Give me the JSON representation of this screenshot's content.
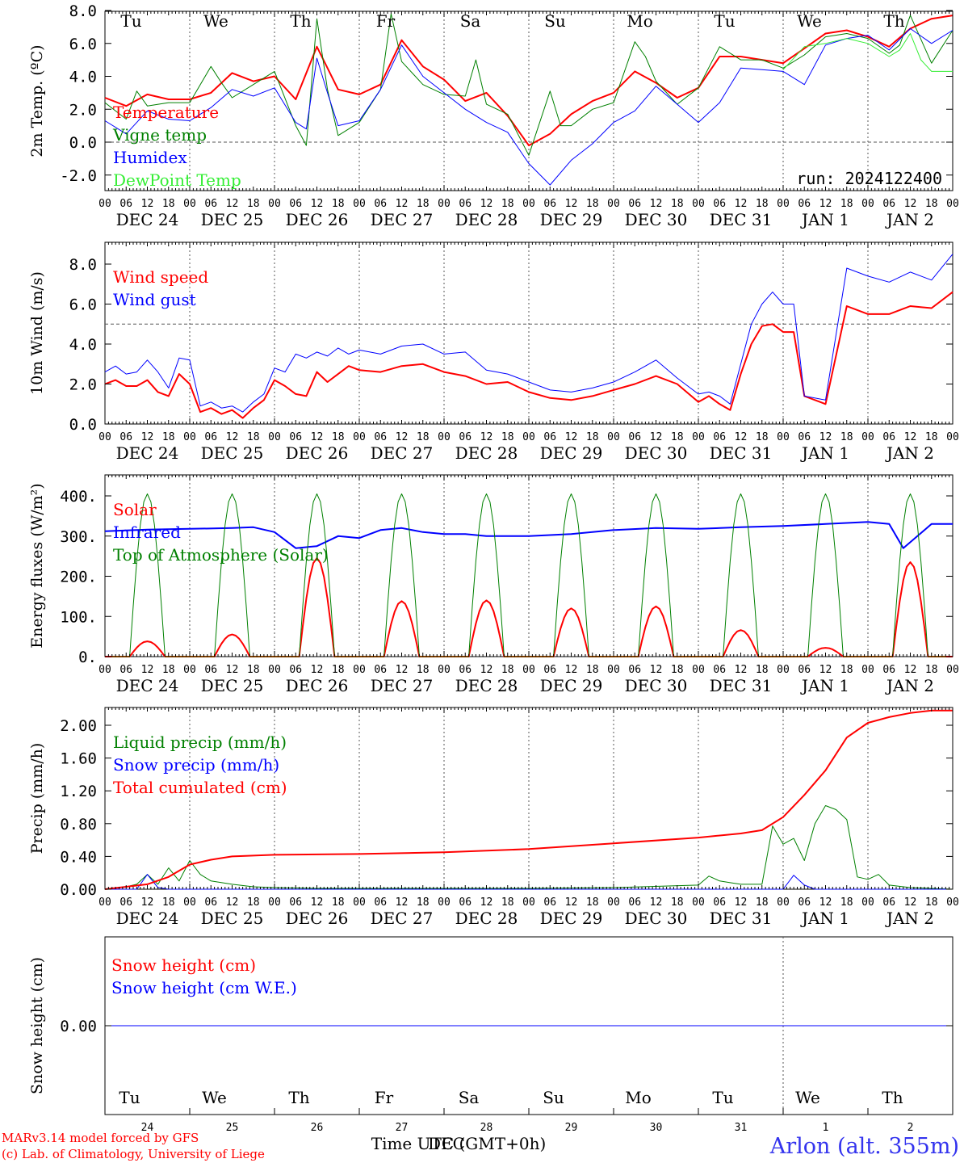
{
  "page": {
    "station": "Arlon (alt. 355m)",
    "credit_line1": "MARv3.14 model forced by GFS",
    "credit_line2": "(c) Lab. of Climatology, University of Liege",
    "time_axis_label": "Time UTC (GMT+0h)",
    "time_axis_overlay": "DEC",
    "run_label": "run: 2024122400",
    "colors": {
      "red": "#ff0000",
      "green": "#008000",
      "blue": "#0000ff",
      "lightgreen": "#33ee33",
      "weekend": "#ff0000"
    }
  },
  "days": [
    "Tu",
    "We",
    "Th",
    "Fr",
    "Sa",
    "Su",
    "Mo",
    "Tu",
    "We",
    "Th"
  ],
  "weekend_days": [
    "Sa",
    "Su"
  ],
  "dates": [
    "DEC 24",
    "DEC 25",
    "DEC 26",
    "DEC 27",
    "DEC 28",
    "DEC 29",
    "DEC 30",
    "DEC 31",
    "JAN  1",
    "JAN  2"
  ],
  "day_numbers": [
    "24",
    "25",
    "26",
    "27",
    "28",
    "29",
    "30",
    "31",
    "1",
    "2"
  ],
  "hour_ticks": [
    "00",
    "06",
    "12",
    "18"
  ],
  "chart_data": [
    {
      "type": "line",
      "ylabel": "2m Temp. (ºC)",
      "ylim": [
        -3,
        8
      ],
      "yticks": [
        8.0,
        6.0,
        4.0,
        2.0,
        0.0,
        -2.0
      ],
      "ytick_labels": [
        "8.0",
        "6.0",
        "4.0",
        "2.0",
        "0.0",
        "-2.0"
      ],
      "reference_line": 0.0,
      "x_unit": "hours since DEC 24 00 UTC",
      "series": [
        {
          "name": "Temperature",
          "color": "#ff0000",
          "width": 2,
          "x": [
            0,
            6,
            12,
            18,
            24,
            30,
            36,
            42,
            48,
            54,
            60,
            66,
            72,
            78,
            84,
            90,
            96,
            102,
            108,
            114,
            120,
            126,
            132,
            138,
            144,
            150,
            156,
            162,
            168,
            174,
            180,
            186,
            192,
            198,
            204,
            210,
            216,
            222,
            228,
            234,
            240
          ],
          "y": [
            2.7,
            2.2,
            2.9,
            2.6,
            2.6,
            3.0,
            4.2,
            3.7,
            4.0,
            2.6,
            5.8,
            3.2,
            2.9,
            3.5,
            6.2,
            4.6,
            3.8,
            2.5,
            3.0,
            1.6,
            -0.2,
            0.5,
            1.7,
            2.5,
            3.0,
            4.3,
            3.6,
            2.7,
            3.3,
            5.2,
            5.2,
            5.0,
            4.8,
            5.7,
            6.6,
            6.8,
            6.4,
            5.8,
            6.9,
            7.5,
            7.7
          ]
        },
        {
          "name": "Vigne temp",
          "color": "#008000",
          "width": 1,
          "x": [
            0,
            6,
            9,
            12,
            18,
            24,
            30,
            33,
            36,
            42,
            48,
            54,
            57,
            60,
            63,
            66,
            72,
            78,
            81,
            84,
            87,
            90,
            96,
            102,
            105,
            108,
            114,
            120,
            126,
            129,
            132,
            138,
            144,
            150,
            153,
            156,
            162,
            168,
            174,
            180,
            186,
            192,
            198,
            204,
            210,
            216,
            222,
            225,
            228,
            234,
            240
          ],
          "y": [
            2.4,
            1.4,
            3.1,
            2.2,
            2.4,
            2.4,
            4.6,
            3.6,
            2.7,
            3.5,
            4.3,
            1.0,
            -0.2,
            7.5,
            3.2,
            0.4,
            1.2,
            3.2,
            7.8,
            4.9,
            4.2,
            3.5,
            2.9,
            2.8,
            5.0,
            2.3,
            1.7,
            -0.8,
            3.1,
            1.0,
            1.0,
            2.0,
            2.4,
            6.1,
            5.2,
            3.7,
            2.3,
            3.3,
            5.8,
            5.0,
            5.0,
            4.5,
            5.3,
            6.4,
            6.6,
            6.3,
            5.4,
            5.9,
            7.7,
            4.8,
            6.8
          ]
        },
        {
          "name": "Humidex",
          "color": "#0000ff",
          "width": 1,
          "x": [
            0,
            6,
            12,
            18,
            24,
            30,
            36,
            42,
            48,
            54,
            57,
            60,
            63,
            66,
            72,
            78,
            84,
            90,
            96,
            102,
            108,
            114,
            120,
            126,
            132,
            138,
            144,
            150,
            156,
            162,
            168,
            174,
            180,
            186,
            192,
            198,
            204,
            210,
            216,
            222,
            228,
            234,
            240
          ],
          "y": [
            1.3,
            0.5,
            1.9,
            1.4,
            1.3,
            2.1,
            3.2,
            2.8,
            3.3,
            1.2,
            0.8,
            5.1,
            3.0,
            1.0,
            1.3,
            3.2,
            5.9,
            4.0,
            3.0,
            2.0,
            1.2,
            0.6,
            -1.3,
            -2.6,
            -1.1,
            -0.1,
            1.2,
            1.9,
            3.4,
            2.3,
            1.2,
            2.4,
            4.5,
            4.4,
            4.3,
            3.5,
            5.9,
            6.3,
            6.5,
            5.6,
            6.9,
            6.0,
            6.8
          ]
        },
        {
          "name": "DewPoint Temp",
          "color": "#33ee33",
          "width": 1,
          "x": [
            192,
            198,
            204,
            210,
            216,
            222,
            225,
            228,
            231,
            234,
            240
          ],
          "y": [
            4.4,
            5.8,
            6.0,
            6.3,
            6.0,
            5.2,
            5.6,
            6.6,
            5.0,
            4.3,
            4.3
          ]
        }
      ]
    },
    {
      "type": "line",
      "ylabel": "10m Wind (m/s)",
      "ylim": [
        0,
        8.8
      ],
      "yticks": [
        8.0,
        6.0,
        4.0,
        2.0,
        0.0
      ],
      "ytick_labels": [
        "8.0",
        "6.0",
        "4.0",
        "2.0",
        "0.0"
      ],
      "reference_line": 5.0,
      "series": [
        {
          "name": "Wind speed",
          "color": "#ff0000",
          "width": 2,
          "x": [
            0,
            3,
            6,
            9,
            12,
            15,
            18,
            21,
            24,
            27,
            30,
            33,
            36,
            39,
            42,
            45,
            48,
            51,
            54,
            57,
            60,
            63,
            66,
            69,
            72,
            78,
            84,
            90,
            96,
            102,
            108,
            114,
            120,
            126,
            132,
            138,
            144,
            150,
            156,
            162,
            168,
            171,
            174,
            177,
            180,
            183,
            186,
            189,
            192,
            195,
            198,
            204,
            210,
            216,
            222,
            228,
            234,
            240
          ],
          "y": [
            2.0,
            2.2,
            1.9,
            1.9,
            2.2,
            1.6,
            1.4,
            2.5,
            2.0,
            0.6,
            0.8,
            0.5,
            0.7,
            0.3,
            0.8,
            1.2,
            2.2,
            1.9,
            1.5,
            1.4,
            2.6,
            2.1,
            2.5,
            2.9,
            2.7,
            2.6,
            2.9,
            3.0,
            2.6,
            2.4,
            2.0,
            2.1,
            1.6,
            1.3,
            1.2,
            1.4,
            1.7,
            2.0,
            2.4,
            2.0,
            1.1,
            1.4,
            1.0,
            0.7,
            2.5,
            4.0,
            4.9,
            5.0,
            4.6,
            4.6,
            1.4,
            1.0,
            5.9,
            5.5,
            5.5,
            5.9,
            5.8,
            6.6
          ]
        },
        {
          "name": "Wind gust",
          "color": "#0000ff",
          "width": 1,
          "x": [
            0,
            3,
            6,
            9,
            12,
            15,
            18,
            21,
            24,
            27,
            30,
            33,
            36,
            39,
            42,
            45,
            48,
            51,
            54,
            57,
            60,
            63,
            66,
            69,
            72,
            78,
            84,
            90,
            96,
            102,
            108,
            114,
            120,
            126,
            132,
            138,
            144,
            150,
            156,
            162,
            168,
            171,
            174,
            177,
            180,
            183,
            186,
            189,
            192,
            195,
            198,
            204,
            210,
            216,
            222,
            228,
            234,
            240
          ],
          "y": [
            2.6,
            2.9,
            2.5,
            2.6,
            3.2,
            2.6,
            1.8,
            3.3,
            3.2,
            0.9,
            1.1,
            0.8,
            0.9,
            0.6,
            1.1,
            1.5,
            2.8,
            2.6,
            3.5,
            3.3,
            3.6,
            3.4,
            3.8,
            3.5,
            3.7,
            3.5,
            3.9,
            4.0,
            3.5,
            3.6,
            2.7,
            2.5,
            2.1,
            1.7,
            1.6,
            1.8,
            2.1,
            2.6,
            3.2,
            2.3,
            1.5,
            1.6,
            1.4,
            1.0,
            3.0,
            5.0,
            6.0,
            6.6,
            6.0,
            6.0,
            1.4,
            1.2,
            7.8,
            7.4,
            7.1,
            7.6,
            7.2,
            8.5
          ]
        }
      ]
    },
    {
      "type": "line",
      "ylabel": "Energy fluxes (W/m²)",
      "ylim": [
        0,
        440
      ],
      "yticks": [
        400,
        300,
        200,
        100,
        0
      ],
      "ytick_labels": [
        "400.",
        "300.",
        "200.",
        "100.",
        "0."
      ],
      "series": [
        {
          "name": "Solar",
          "color": "#ff0000",
          "width": 2,
          "daily_peaks_wm2": [
            38,
            55,
            245,
            138,
            140,
            120,
            125,
            66,
            22,
            235
          ],
          "daylight_hours_utc": [
            7,
            17
          ]
        },
        {
          "name": "Infrared",
          "color": "#0000ff",
          "width": 2,
          "x": [
            0,
            12,
            24,
            36,
            42,
            48,
            54,
            60,
            66,
            72,
            78,
            84,
            90,
            96,
            102,
            108,
            114,
            120,
            132,
            144,
            156,
            168,
            180,
            192,
            204,
            216,
            222,
            226,
            230,
            234,
            240
          ],
          "y": [
            312,
            316,
            318,
            320,
            322,
            310,
            270,
            275,
            300,
            295,
            315,
            320,
            310,
            305,
            305,
            300,
            300,
            300,
            305,
            315,
            320,
            318,
            322,
            325,
            330,
            335,
            330,
            270,
            300,
            330,
            330
          ]
        },
        {
          "name": "Top of Atmosphere (Solar)",
          "color": "#008000",
          "width": 1,
          "daily_peaks_wm2": [
            405,
            405,
            405,
            405,
            405,
            405,
            405,
            405,
            405,
            405
          ],
          "daylight_hours_utc": [
            7,
            17
          ]
        }
      ]
    },
    {
      "type": "line",
      "ylabel": "Precip (mm/h)",
      "ylim": [
        0,
        2.25
      ],
      "yticks": [
        2.0,
        1.6,
        1.2,
        0.8,
        0.4,
        0.0
      ],
      "ytick_labels": [
        "2.00",
        "1.60",
        "1.20",
        "0.80",
        "0.40",
        "0.00"
      ],
      "series": [
        {
          "name": "Liquid precip (mm/h)",
          "color": "#008000",
          "width": 1,
          "x": [
            0,
            6,
            9,
            12,
            15,
            18,
            21,
            24,
            27,
            30,
            36,
            42,
            48,
            60,
            72,
            96,
            120,
            144,
            168,
            171,
            174,
            177,
            180,
            186,
            189,
            192,
            195,
            198,
            201,
            204,
            207,
            210,
            213,
            216,
            219,
            222,
            228,
            234,
            240
          ],
          "y": [
            0.0,
            0.03,
            0.06,
            0.18,
            0.06,
            0.26,
            0.1,
            0.35,
            0.18,
            0.1,
            0.06,
            0.03,
            0.02,
            0.01,
            0.01,
            0.01,
            0.01,
            0.02,
            0.05,
            0.16,
            0.1,
            0.08,
            0.06,
            0.06,
            0.77,
            0.55,
            0.62,
            0.35,
            0.8,
            1.02,
            0.97,
            0.85,
            0.15,
            0.12,
            0.18,
            0.05,
            0.02,
            0.01,
            0.0
          ]
        },
        {
          "name": "Snow precip (mm/h)",
          "color": "#0000ff",
          "width": 1,
          "x": [
            0,
            9,
            12,
            15,
            18,
            96,
            120,
            144,
            192,
            195,
            198,
            201,
            240
          ],
          "y": [
            0.0,
            0.0,
            0.18,
            0.02,
            0.0,
            0.0,
            0.0,
            0.0,
            0.0,
            0.17,
            0.05,
            0.0,
            0.0
          ]
        },
        {
          "name": "Total cumulated (cm)",
          "color": "#ff0000",
          "width": 2,
          "x": [
            0,
            6,
            12,
            18,
            24,
            30,
            36,
            48,
            72,
            96,
            120,
            144,
            168,
            180,
            186,
            192,
            198,
            204,
            210,
            216,
            222,
            228,
            234,
            240
          ],
          "y": [
            0.0,
            0.03,
            0.06,
            0.15,
            0.3,
            0.36,
            0.4,
            0.42,
            0.43,
            0.45,
            0.49,
            0.56,
            0.63,
            0.68,
            0.72,
            0.88,
            1.15,
            1.45,
            1.85,
            2.03,
            2.1,
            2.15,
            2.18,
            2.18
          ]
        }
      ]
    },
    {
      "type": "line",
      "ylabel": "Snow height (cm)",
      "yticks": [
        0.0
      ],
      "ytick_labels": [
        "0.00"
      ],
      "series": [
        {
          "name": "Snow height (cm)",
          "color": "#ff0000",
          "width": 1,
          "x": [
            0,
            240
          ],
          "y": [
            0,
            0
          ]
        },
        {
          "name": "Snow height (cm W.E.)",
          "color": "#0000ff",
          "width": 1,
          "x": [
            0,
            240
          ],
          "y": [
            0,
            0
          ]
        }
      ]
    }
  ]
}
